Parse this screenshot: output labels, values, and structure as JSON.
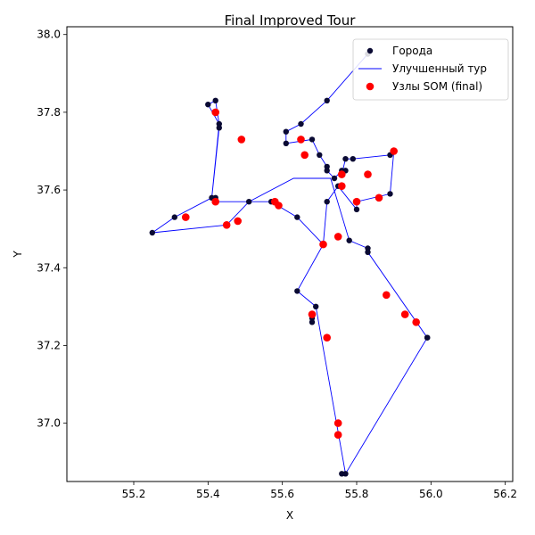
{
  "chart_data": {
    "type": "scatter",
    "title": "Final Improved Tour",
    "xlabel": "X",
    "ylabel": "Y",
    "xlim": [
      55.02,
      56.22
    ],
    "ylim": [
      36.85,
      38.02
    ],
    "x_ticks": [
      55.2,
      55.4,
      55.6,
      55.8,
      56.0,
      56.2
    ],
    "y_ticks": [
      37.0,
      37.2,
      37.4,
      37.6,
      37.8,
      38.0
    ],
    "grid": false,
    "legend_position": "top-right",
    "colors": {
      "cities": "#0a0a33",
      "tour": "#0000ff",
      "som": "#ff0000"
    },
    "series": [
      {
        "name": "Города",
        "kind": "scatter",
        "points": [
          [
            55.83,
            37.95
          ],
          [
            55.72,
            37.83
          ],
          [
            55.65,
            37.77
          ],
          [
            55.61,
            37.75
          ],
          [
            55.61,
            37.72
          ],
          [
            55.68,
            37.73
          ],
          [
            55.7,
            37.69
          ],
          [
            55.72,
            37.66
          ],
          [
            55.72,
            37.65
          ],
          [
            55.74,
            37.63
          ],
          [
            55.76,
            37.65
          ],
          [
            55.77,
            37.65
          ],
          [
            55.76,
            37.64
          ],
          [
            55.77,
            37.68
          ],
          [
            55.79,
            37.68
          ],
          [
            55.89,
            37.69
          ],
          [
            55.9,
            37.7
          ],
          [
            55.89,
            37.59
          ],
          [
            55.8,
            37.57
          ],
          [
            55.8,
            37.55
          ],
          [
            55.75,
            37.61
          ],
          [
            55.72,
            37.57
          ],
          [
            55.71,
            37.46
          ],
          [
            55.64,
            37.53
          ],
          [
            55.57,
            37.57
          ],
          [
            55.51,
            37.57
          ],
          [
            55.42,
            37.57
          ],
          [
            55.42,
            37.58
          ],
          [
            55.41,
            37.58
          ],
          [
            55.43,
            37.76
          ],
          [
            55.43,
            37.77
          ],
          [
            55.42,
            37.83
          ],
          [
            55.4,
            37.82
          ],
          [
            55.31,
            37.53
          ],
          [
            55.25,
            37.49
          ],
          [
            55.78,
            37.47
          ],
          [
            55.83,
            37.45
          ],
          [
            55.83,
            37.44
          ],
          [
            55.64,
            37.34
          ],
          [
            55.69,
            37.3
          ],
          [
            55.68,
            37.27
          ],
          [
            55.68,
            37.26
          ],
          [
            55.99,
            37.22
          ],
          [
            55.99,
            37.22
          ],
          [
            55.77,
            36.87
          ],
          [
            55.76,
            36.87
          ]
        ]
      },
      {
        "name": "Улучшенный тур",
        "kind": "line",
        "points": [
          [
            55.83,
            37.95
          ],
          [
            55.72,
            37.83
          ],
          [
            55.65,
            37.77
          ],
          [
            55.61,
            37.75
          ],
          [
            55.61,
            37.72
          ],
          [
            55.68,
            37.73
          ],
          [
            55.7,
            37.69
          ],
          [
            55.72,
            37.66
          ],
          [
            55.72,
            37.65
          ],
          [
            55.74,
            37.63
          ],
          [
            55.76,
            37.65
          ],
          [
            55.77,
            37.65
          ],
          [
            55.76,
            37.64
          ],
          [
            55.77,
            37.68
          ],
          [
            55.79,
            37.68
          ],
          [
            55.89,
            37.69
          ],
          [
            55.9,
            37.7
          ],
          [
            55.89,
            37.59
          ],
          [
            55.8,
            37.57
          ],
          [
            55.8,
            37.55
          ],
          [
            55.75,
            37.61
          ],
          [
            55.72,
            37.57
          ],
          [
            55.71,
            37.46
          ],
          [
            55.64,
            37.53
          ],
          [
            55.57,
            37.57
          ],
          [
            55.51,
            37.57
          ],
          [
            55.42,
            37.57
          ],
          [
            55.42,
            37.58
          ],
          [
            55.41,
            37.58
          ],
          [
            55.43,
            37.76
          ],
          [
            55.43,
            37.77
          ],
          [
            55.42,
            37.83
          ],
          [
            55.4,
            37.82
          ],
          [
            55.43,
            37.77
          ],
          [
            55.41,
            37.58
          ],
          [
            55.31,
            37.53
          ],
          [
            55.25,
            37.49
          ],
          [
            55.45,
            37.51
          ],
          [
            55.51,
            37.57
          ],
          [
            55.63,
            37.63
          ],
          [
            55.73,
            37.63
          ],
          [
            55.78,
            37.47
          ],
          [
            55.83,
            37.45
          ],
          [
            55.83,
            37.44
          ],
          [
            55.99,
            37.22
          ],
          [
            55.77,
            36.87
          ],
          [
            55.69,
            37.3
          ],
          [
            55.64,
            37.34
          ],
          [
            55.71,
            37.46
          ]
        ]
      },
      {
        "name": "Узлы SOM (final)",
        "kind": "scatter",
        "points": [
          [
            55.42,
            37.8
          ],
          [
            55.49,
            37.73
          ],
          [
            55.65,
            37.73
          ],
          [
            55.66,
            37.69
          ],
          [
            55.76,
            37.64
          ],
          [
            55.76,
            37.61
          ],
          [
            55.83,
            37.64
          ],
          [
            55.9,
            37.7
          ],
          [
            55.86,
            37.58
          ],
          [
            55.8,
            37.57
          ],
          [
            55.75,
            37.48
          ],
          [
            55.71,
            37.46
          ],
          [
            55.58,
            37.57
          ],
          [
            55.59,
            37.56
          ],
          [
            55.42,
            37.57
          ],
          [
            55.34,
            37.53
          ],
          [
            55.45,
            37.51
          ],
          [
            55.48,
            37.52
          ],
          [
            55.88,
            37.33
          ],
          [
            55.93,
            37.28
          ],
          [
            55.96,
            37.26
          ],
          [
            55.68,
            37.28
          ],
          [
            55.72,
            37.22
          ],
          [
            55.75,
            37.0
          ],
          [
            55.75,
            36.97
          ]
        ]
      }
    ]
  }
}
